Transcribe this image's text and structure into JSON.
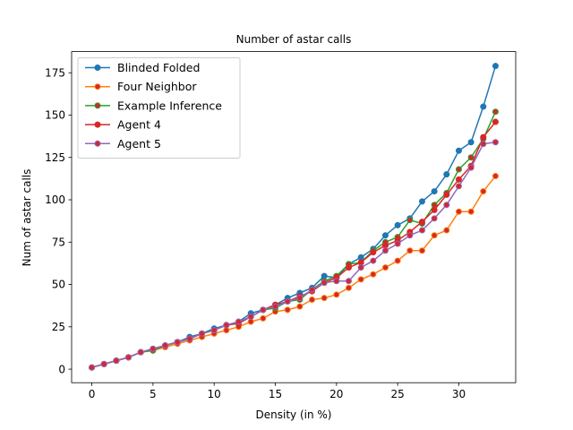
{
  "chart_data": {
    "type": "line",
    "title": "Number of astar calls",
    "xlabel": "Density (in %)",
    "ylabel": "Num of astar calls",
    "xlim": [
      -1.65,
      34.65
    ],
    "ylim": [
      -8,
      187.5
    ],
    "xticks": [
      0,
      5,
      10,
      15,
      20,
      25,
      30
    ],
    "yticks": [
      0,
      25,
      50,
      75,
      100,
      125,
      150,
      175
    ],
    "grid": false,
    "legend_position": "top-left",
    "x": [
      0,
      1,
      2,
      3,
      4,
      5,
      6,
      7,
      8,
      9,
      10,
      11,
      12,
      13,
      14,
      15,
      16,
      17,
      18,
      19,
      20,
      21,
      22,
      23,
      24,
      25,
      26,
      27,
      28,
      29,
      30,
      31,
      32,
      33
    ],
    "series": [
      {
        "name": "Blinded Folded",
        "color": "#1f77b4",
        "marker_fill": "#1f77b4",
        "values": [
          1,
          3,
          5,
          7,
          10,
          12,
          14,
          16,
          19,
          21,
          24,
          26,
          28,
          33,
          35,
          38,
          42,
          45,
          48,
          55,
          54,
          62,
          66,
          71,
          79,
          85,
          89,
          99,
          105,
          115,
          129,
          134,
          155,
          179
        ]
      },
      {
        "name": "Four Neighbor",
        "color": "#ff7f0e",
        "marker_fill": "#d62728",
        "values": [
          1,
          3,
          5,
          7,
          10,
          11,
          13,
          15,
          17,
          19,
          21,
          23,
          25,
          28,
          30,
          34,
          35,
          37,
          41,
          42,
          44,
          48,
          53,
          56,
          60,
          64,
          70,
          70,
          79,
          82,
          93,
          93,
          105,
          114
        ]
      },
      {
        "name": "Example Inference",
        "color": "#2ca02c",
        "marker_fill": "#d62728",
        "values": [
          1,
          3,
          5,
          7,
          10,
          11,
          14,
          16,
          18,
          21,
          23,
          26,
          27,
          31,
          35,
          36,
          40,
          41,
          47,
          52,
          55,
          62,
          63,
          70,
          75,
          78,
          88,
          86,
          97,
          104,
          118,
          125,
          136,
          152
        ]
      },
      {
        "name": "Agent 4",
        "color": "#d62728",
        "marker_fill": "#d62728",
        "values": [
          1,
          3,
          5,
          7,
          10,
          12,
          14,
          16,
          18,
          21,
          23,
          26,
          27,
          31,
          35,
          38,
          40,
          43,
          46,
          51,
          54,
          60,
          63,
          69,
          73,
          76,
          81,
          87,
          94,
          103,
          112,
          120,
          137,
          146
        ]
      },
      {
        "name": "Agent 5",
        "color": "#9467bd",
        "marker_fill": "#d62728",
        "values": [
          1,
          3,
          5,
          7,
          10,
          12,
          14,
          16,
          18,
          21,
          23,
          26,
          28,
          31,
          35,
          37,
          40,
          42,
          47,
          51,
          52,
          52,
          60,
          64,
          70,
          74,
          79,
          82,
          89,
          97,
          108,
          119,
          133,
          134
        ]
      }
    ]
  }
}
